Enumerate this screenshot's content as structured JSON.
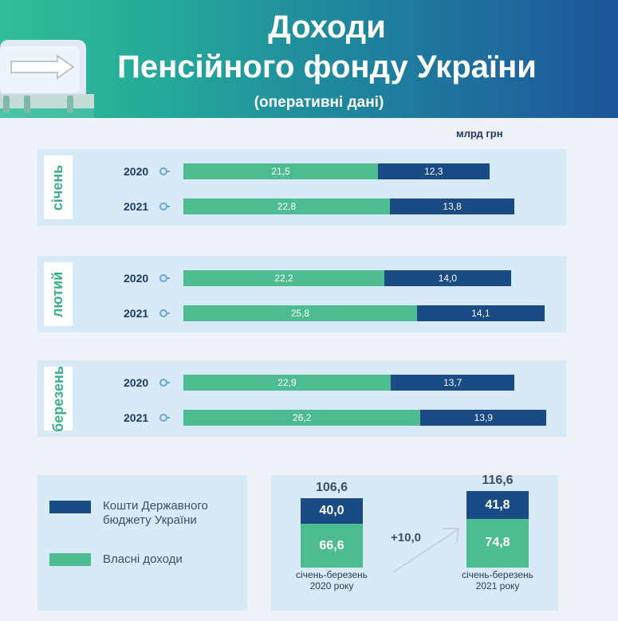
{
  "header": {
    "title_line1": "Доходи",
    "title_line2": "Пенсійного фонду України",
    "subtitle": "(оперативні дані)"
  },
  "unit": "млрд грн",
  "legend": {
    "state_budget": "Кошти Державного бюджету України",
    "own_income": "Власні доходи"
  },
  "colors": {
    "own": "#4dbd91",
    "state": "#1b4b84",
    "header_start": "#2fbf95",
    "header_end": "#1d559a"
  },
  "chart_data": [
    {
      "type": "bar",
      "orientation": "horizontal",
      "stacked": true,
      "groups": [
        {
          "month": "січень",
          "rows": [
            {
              "year": "2020",
              "own": 21.5,
              "state": 12.3,
              "own_label": "21,5",
              "state_label": "12,3"
            },
            {
              "year": "2021",
              "own": 22.8,
              "state": 13.8,
              "own_label": "22,8",
              "state_label": "13,8"
            }
          ]
        },
        {
          "month": "лютий",
          "rows": [
            {
              "year": "2020",
              "own": 22.2,
              "state": 14.0,
              "own_label": "22,2",
              "state_label": "14,0"
            },
            {
              "year": "2021",
              "own": 25.8,
              "state": 14.1,
              "own_label": "25,8",
              "state_label": "14,1"
            }
          ]
        },
        {
          "month": "березень",
          "rows": [
            {
              "year": "2020",
              "own": 22.9,
              "state": 13.7,
              "own_label": "22,9",
              "state_label": "13,7"
            },
            {
              "year": "2021",
              "own": 26.2,
              "state": 13.9,
              "own_label": "26,2",
              "state_label": "13,9"
            }
          ]
        }
      ]
    },
    {
      "type": "bar",
      "orientation": "vertical",
      "stacked": true,
      "columns": [
        {
          "caption": "січень-березень 2020 року",
          "total": "106,6",
          "state": 40.0,
          "own": 66.6,
          "state_label": "40,0",
          "own_label": "66,6"
        },
        {
          "caption": "січень-березень 2021 року",
          "total": "116,6",
          "state": 41.8,
          "own": 74.8,
          "state_label": "41,8",
          "own_label": "74,8"
        }
      ],
      "difference": "+10,0"
    }
  ]
}
